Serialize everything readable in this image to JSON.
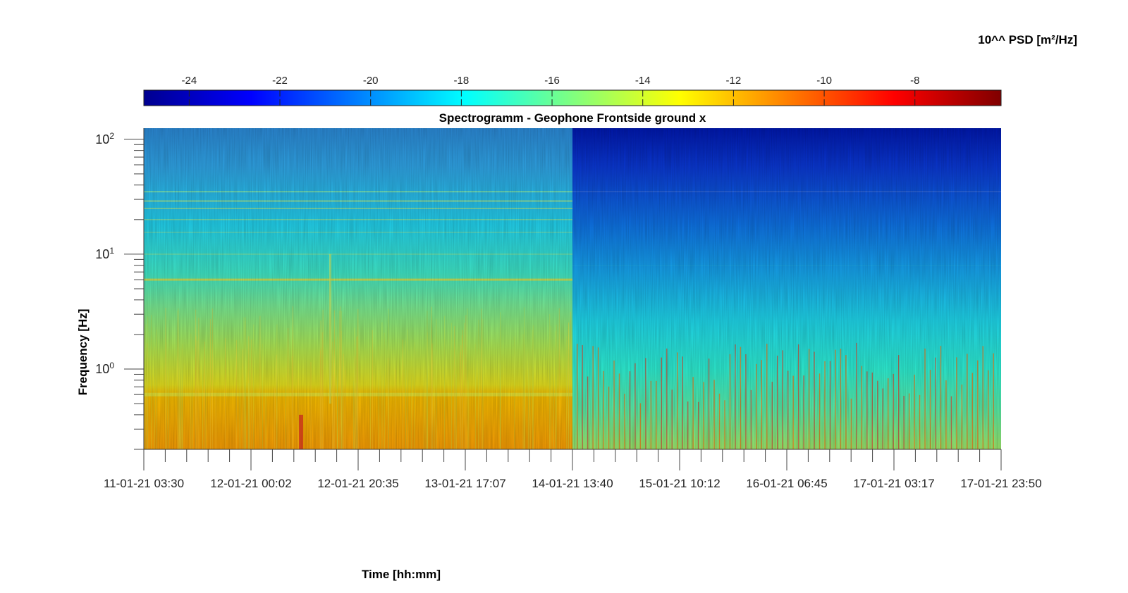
{
  "chart_data": {
    "type": "heatmap",
    "title": "Spectrogramm - Geophone Frontside ground x",
    "xlabel": "Time [hh:mm]",
    "ylabel": "Frequency [Hz]",
    "yscale": "log",
    "ylim": [
      0.2,
      125
    ],
    "y_ticks": [
      {
        "value": 1,
        "base": "10",
        "exp": "0"
      },
      {
        "value": 10,
        "base": "10",
        "exp": "1"
      },
      {
        "value": 100,
        "base": "10",
        "exp": "2"
      }
    ],
    "x_tick_labels": [
      "11-01-21 03:30",
      "12-01-21 00:02",
      "12-01-21 20:35",
      "13-01-21 17:07",
      "14-01-21 13:40",
      "15-01-21 10:12",
      "16-01-21 06:45",
      "17-01-21 03:17",
      "17-01-21 23:50"
    ],
    "colorbar": {
      "label": "10^^ PSD [m²/Hz]",
      "colormap": "jet",
      "range": [
        -25,
        -6.1
      ],
      "ticks": [
        -24,
        -22,
        -20,
        -18,
        -16,
        -14,
        -12,
        -10,
        -8
      ]
    },
    "regions": [
      {
        "from": "11-01-21 03:30",
        "to": "14-01-21 13:40",
        "psd_log10_low_freq": -12,
        "psd_log10_mid_freq": -17,
        "psd_log10_high_freq": -20
      },
      {
        "from": "14-01-21 13:40",
        "to": "17-01-21 23:50",
        "psd_log10_low_freq": -16,
        "psd_log10_mid_freq": -19,
        "psd_log10_high_freq": -23
      }
    ]
  }
}
